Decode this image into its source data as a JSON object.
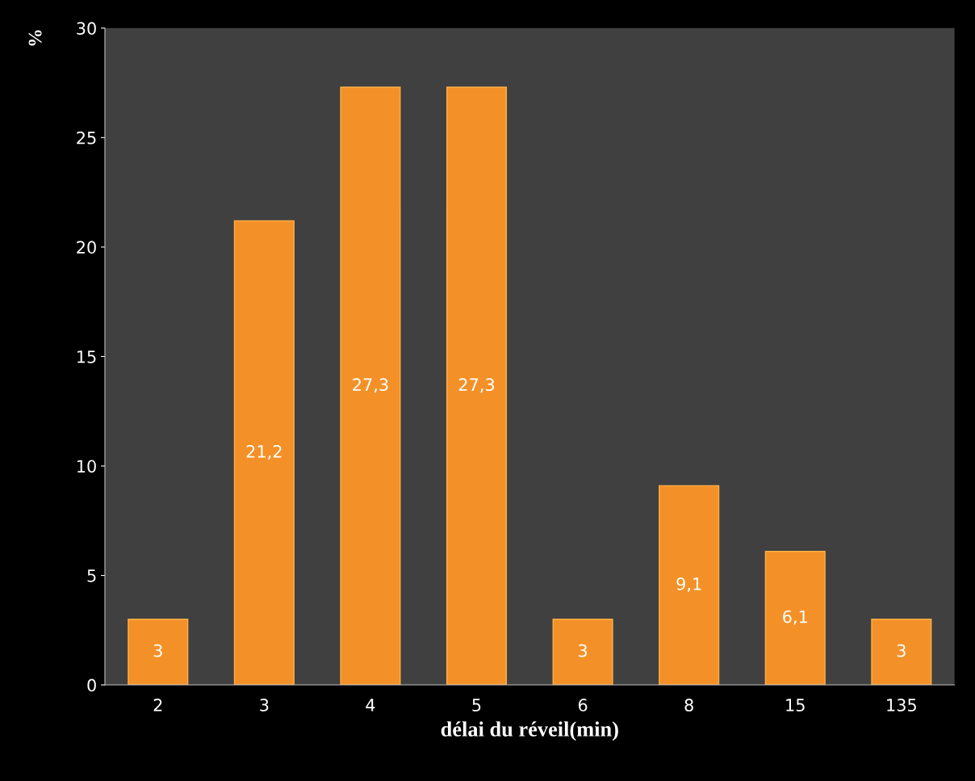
{
  "chart_data": {
    "type": "bar",
    "xlabel": "délai du réveil(min)",
    "ylabel": "%",
    "categories": [
      "2",
      "3",
      "4",
      "5",
      "6",
      "8",
      "15",
      "135"
    ],
    "values": [
      3,
      21.2,
      27.3,
      27.3,
      3,
      9.1,
      6.1,
      3
    ],
    "value_labels": [
      "3",
      "21,2",
      "27,3",
      "27,3",
      "3",
      "9,1",
      "6,1",
      "3"
    ],
    "color": "#f39128",
    "ylim": [
      0,
      30
    ],
    "yticks": [
      0,
      5,
      10,
      15,
      20,
      25,
      30
    ],
    "grid": false,
    "legend": false
  }
}
